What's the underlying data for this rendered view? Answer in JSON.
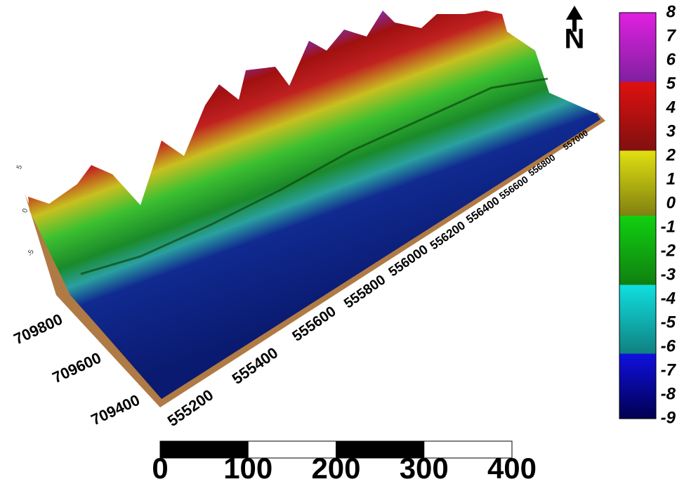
{
  "north": "N",
  "colorbar": {
    "labels": [
      "8",
      "7",
      "6",
      "5",
      "4",
      "3",
      "2",
      "1",
      "0",
      "-1",
      "-2",
      "-3",
      "-4",
      "-5",
      "-6",
      "-7",
      "-8",
      "-9"
    ]
  },
  "easting_labels": [
    "555200",
    "555400",
    "555600",
    "555800",
    "556000",
    "556200",
    "556400",
    "556600",
    "556800",
    "557000"
  ],
  "northing_labels": [
    "709800",
    "709600",
    "709400"
  ],
  "elevation_labels": [
    "5",
    "0",
    "-5"
  ],
  "scale_bar": {
    "labels": [
      "0",
      "100",
      "200",
      "300",
      "400"
    ]
  }
}
